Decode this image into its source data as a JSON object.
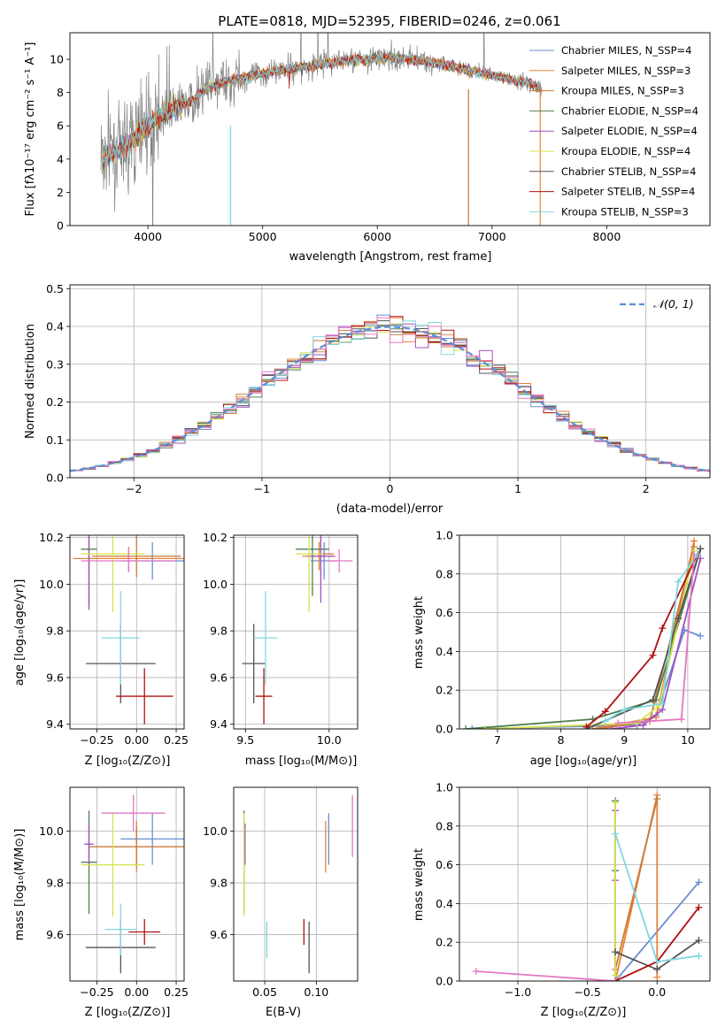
{
  "figure": {
    "title": "PLATE=0818, MJD=52395, FIBERID=0246, z=0.061"
  },
  "models": [
    {
      "name": "Chabrier MILES",
      "nssp": "4",
      "color": "#6b8fd4"
    },
    {
      "name": "Salpeter MILES",
      "nssp": "3",
      "color": "#e8833a"
    },
    {
      "name": "Kroupa MILES",
      "nssp": "3",
      "color": "#c97a3a"
    },
    {
      "name": "Chabrier ELODIE",
      "nssp": "4",
      "color": "#4f7f4f"
    },
    {
      "name": "Salpeter ELODIE",
      "nssp": "4",
      "color": "#a34fc2"
    },
    {
      "name": "Kroupa ELODIE",
      "nssp": "4",
      "color": "#d6e34a"
    },
    {
      "name": "Chabrier STELIB",
      "nssp": "4",
      "color": "#555555"
    },
    {
      "name": "Salpeter STELIB",
      "nssp": "4",
      "color": "#b01010"
    },
    {
      "name": "Kroupa STELIB",
      "nssp": "3",
      "color": "#7fd8e0"
    }
  ],
  "extra_colors": {
    "pink": "#e377c2",
    "data": "#808080",
    "gauss": "#5b8dd6"
  },
  "chart_data": [
    {
      "id": "spectrum",
      "type": "line",
      "xlabel": "wavelength [Angstrom, rest frame]",
      "ylabel": "Flux [fλ10⁻¹⁷ erg cm⁻² s⁻¹ A⁻¹]",
      "xlim": [
        3320,
        8900
      ],
      "ylim": [
        0,
        11.6
      ],
      "xticks": [
        4000,
        5000,
        6000,
        7000,
        8000
      ],
      "yticks": [
        0,
        2,
        4,
        6,
        8,
        10
      ],
      "model_continuum": {
        "x": [
          3600,
          3700,
          3800,
          3900,
          4000,
          4100,
          4200,
          4300,
          4400,
          4500,
          4700,
          4900,
          5100,
          5300,
          5500,
          5700,
          5900,
          6100,
          6300,
          6500,
          6700,
          6900,
          7100,
          7300,
          7420
        ],
        "y": [
          3.9,
          4.4,
          4.6,
          5.4,
          6.0,
          6.6,
          6.9,
          7.3,
          7.6,
          8.2,
          8.7,
          9.0,
          9.3,
          9.5,
          9.7,
          9.9,
          10.0,
          10.1,
          10.0,
          9.8,
          9.5,
          9.2,
          8.9,
          8.6,
          8.3
        ]
      },
      "series": [
        {
          "name": "Chabrier MILES",
          "label": "N_SSP=4"
        },
        {
          "name": "Salpeter MILES",
          "label": "N_SSP=3"
        },
        {
          "name": "Kroupa MILES",
          "label": "N_SSP=3"
        },
        {
          "name": "Chabrier ELODIE",
          "label": "N_SSP=4"
        },
        {
          "name": "Salpeter ELODIE",
          "label": "N_SSP=4"
        },
        {
          "name": "Kroupa ELODIE",
          "label": "N_SSP=4"
        },
        {
          "name": "Chabrier STELIB",
          "label": "N_SSP=4"
        },
        {
          "name": "Salpeter STELIB",
          "label": "N_SSP=4"
        },
        {
          "name": "Kroupa STELIB",
          "label": "N_SSP=3"
        }
      ],
      "legend": "right"
    },
    {
      "id": "residuals",
      "type": "histogram",
      "xlabel": "(data-model)/error",
      "ylabel": "Normed distribution",
      "xlim": [
        -2.5,
        2.5
      ],
      "ylim": [
        0,
        0.51
      ],
      "xticks": [
        -2,
        -1,
        0,
        1,
        2
      ],
      "yticks": [
        0.0,
        0.1,
        0.2,
        0.3,
        0.4,
        0.5
      ],
      "bin_width": 0.1,
      "reference_curve": "𝒩(0, 1)",
      "legend": "top-right",
      "grid": true
    },
    {
      "id": "age-vs-Z",
      "type": "errorbar",
      "xlabel": "Z [log₁₀(Z/Z⊙)]",
      "ylabel": "age  [log₁₀(age/yr)]",
      "xlim": [
        -0.42,
        0.3
      ],
      "ylim": [
        9.38,
        10.21
      ],
      "xticks": [
        -0.25,
        0.0,
        0.25
      ],
      "yticks": [
        9.4,
        9.6,
        9.8,
        10.0,
        10.2
      ],
      "points": [
        {
          "model": "Chabrier MILES",
          "x": 0.1,
          "xerr": 0.2,
          "y": 10.1,
          "yerr": 0.08
        },
        {
          "model": "Salpeter MILES",
          "x": -0.05,
          "xerr": 0.35,
          "y": 10.11,
          "yerr": 0.05
        },
        {
          "model": "Kroupa MILES",
          "x": 0.0,
          "xerr": 0.28,
          "y": 10.12,
          "yerr": 0.09
        },
        {
          "model": "Chabrier ELODIE",
          "x": -0.3,
          "xerr": 0.05,
          "y": 10.15,
          "yerr": 0.24
        },
        {
          "model": "Salpeter ELODIE",
          "x": -0.3,
          "xerr": 0.0,
          "y": 10.14,
          "yerr": 0.25
        },
        {
          "model": "Kroupa ELODIE",
          "x": -0.15,
          "xerr": 0.2,
          "y": 10.13,
          "yerr": 0.25
        },
        {
          "model": "Chabrier STELIB",
          "x": -0.1,
          "xerr": 0.22,
          "y": 9.66,
          "yerr": 0.17
        },
        {
          "model": "Salpeter STELIB",
          "x": 0.05,
          "xerr": 0.18,
          "y": 9.52,
          "yerr": 0.12
        },
        {
          "model": "Kroupa STELIB",
          "x": -0.1,
          "xerr": 0.12,
          "y": 9.77,
          "yerr": 0.2
        },
        {
          "model": "pink",
          "x": -0.05,
          "xerr": 0.3,
          "y": 10.1,
          "yerr": 0.05
        }
      ]
    },
    {
      "id": "age-vs-mass",
      "type": "errorbar",
      "xlabel": "mass [log₁₀(M/M⊙)]",
      "xlim": [
        9.43,
        10.17
      ],
      "ylim": [
        9.38,
        10.21
      ],
      "xticks": [
        9.5,
        10.0
      ],
      "yticks": [
        9.4,
        9.6,
        9.8,
        10.0,
        10.2
      ],
      "points": [
        {
          "model": "Chabrier MILES",
          "x": 9.97,
          "xerr": 0.08,
          "y": 10.1,
          "yerr": 0.08
        },
        {
          "model": "Salpeter MILES",
          "x": 9.94,
          "xerr": 0.1,
          "y": 10.12,
          "yerr": 0.06
        },
        {
          "model": "Kroupa MILES",
          "x": 9.95,
          "xerr": 0.08,
          "y": 10.13,
          "yerr": 0.09
        },
        {
          "model": "Chabrier ELODIE",
          "x": 9.9,
          "xerr": 0.1,
          "y": 10.15,
          "yerr": 0.2
        },
        {
          "model": "Salpeter ELODIE",
          "x": 9.95,
          "xerr": 0.08,
          "y": 10.12,
          "yerr": 0.2
        },
        {
          "model": "Kroupa ELODIE",
          "x": 9.88,
          "xerr": 0.08,
          "y": 10.13,
          "yerr": 0.25
        },
        {
          "model": "Chabrier STELIB",
          "x": 9.55,
          "xerr": 0.07,
          "y": 9.66,
          "yerr": 0.17
        },
        {
          "model": "Salpeter STELIB",
          "x": 9.61,
          "xerr": 0.05,
          "y": 9.52,
          "yerr": 0.12
        },
        {
          "model": "Kroupa STELIB",
          "x": 9.62,
          "xerr": 0.07,
          "y": 9.77,
          "yerr": 0.2
        },
        {
          "model": "pink",
          "x": 10.06,
          "xerr": 0.08,
          "y": 10.1,
          "yerr": 0.05
        }
      ]
    },
    {
      "id": "massweight-vs-age",
      "type": "line",
      "xlabel": "age  [log₁₀(age/yr)]",
      "ylabel": "mass weight",
      "xlim": [
        6.4,
        10.35
      ],
      "ylim": [
        0,
        1.0
      ],
      "xticks": [
        7,
        8,
        9,
        10
      ],
      "yticks": [
        0.0,
        0.2,
        0.4,
        0.6,
        0.8,
        1.0
      ],
      "series": [
        {
          "model": "Chabrier MILES",
          "x": [
            6.6,
            9.2,
            9.5,
            9.95,
            10.2
          ],
          "y": [
            0.0,
            0.02,
            0.07,
            0.51,
            0.48
          ]
        },
        {
          "model": "Salpeter MILES",
          "x": [
            8.5,
            9.5,
            10.1
          ],
          "y": [
            0.0,
            0.06,
            0.97
          ]
        },
        {
          "model": "Kroupa MILES",
          "x": [
            8.6,
            9.4,
            10.1
          ],
          "y": [
            0.0,
            0.04,
            0.94
          ]
        },
        {
          "model": "Chabrier ELODIE",
          "x": [
            6.5,
            8.5,
            9.5,
            10.2
          ],
          "y": [
            0.0,
            0.05,
            0.15,
            0.93
          ]
        },
        {
          "model": "Salpeter ELODIE",
          "x": [
            8.8,
            9.3,
            9.6,
            10.2
          ],
          "y": [
            0.0,
            0.02,
            0.1,
            0.88
          ]
        },
        {
          "model": "Kroupa ELODIE",
          "x": [
            6.8,
            9.2,
            9.55,
            10.1
          ],
          "y": [
            0.0,
            0.03,
            0.12,
            0.92
          ]
        },
        {
          "model": "Chabrier STELIB",
          "x": [
            8.4,
            9.45,
            9.85,
            10.2
          ],
          "y": [
            0.0,
            0.15,
            0.57,
            0.93
          ]
        },
        {
          "model": "Salpeter STELIB",
          "x": [
            8.4,
            8.7,
            9.45,
            9.6,
            10.15
          ],
          "y": [
            0.01,
            0.09,
            0.38,
            0.52,
            0.9
          ]
        },
        {
          "model": "Kroupa STELIB",
          "x": [
            8.7,
            9.0,
            9.6,
            9.85,
            10.15
          ],
          "y": [
            0.04,
            0.1,
            0.13,
            0.76,
            0.9
          ]
        },
        {
          "model": "pink",
          "x": [
            8.9,
            9.9,
            10.1
          ],
          "y": [
            0.03,
            0.05,
            0.9
          ]
        }
      ]
    },
    {
      "id": "mass-vs-Z",
      "type": "errorbar",
      "xlabel": "Z [log₁₀(Z/Z⊙)]",
      "ylabel": "mass [log₁₀(M/M⊙)]",
      "xlim": [
        -0.42,
        0.3
      ],
      "ylim": [
        9.42,
        10.17
      ],
      "xticks": [
        -0.25,
        0.0,
        0.25
      ],
      "yticks": [
        9.6,
        9.8,
        10.0
      ],
      "points": [
        {
          "model": "Chabrier MILES",
          "x": 0.1,
          "xerr": 0.2,
          "y": 9.97,
          "yerr": 0.1
        },
        {
          "model": "Salpeter MILES",
          "x": 0.0,
          "xerr": 0.28,
          "y": 9.94,
          "yerr": 0.1
        },
        {
          "model": "Kroupa MILES",
          "x": 0.0,
          "xerr": 0.3,
          "y": 9.94,
          "yerr": 0.08
        },
        {
          "model": "Chabrier ELODIE",
          "x": -0.3,
          "xerr": 0.05,
          "y": 9.88,
          "yerr": 0.2
        },
        {
          "model": "Salpeter ELODIE",
          "x": -0.3,
          "xerr": 0.03,
          "y": 9.95,
          "yerr": 0.08
        },
        {
          "model": "Kroupa ELODIE",
          "x": -0.15,
          "xerr": 0.2,
          "y": 9.87,
          "yerr": 0.2
        },
        {
          "model": "Chabrier STELIB",
          "x": -0.1,
          "xerr": 0.22,
          "y": 9.55,
          "yerr": 0.1
        },
        {
          "model": "Salpeter STELIB",
          "x": 0.05,
          "xerr": 0.1,
          "y": 9.61,
          "yerr": 0.05
        },
        {
          "model": "Kroupa STELIB",
          "x": -0.1,
          "xerr": 0.1,
          "y": 9.62,
          "yerr": 0.1
        },
        {
          "model": "pink",
          "x": -0.02,
          "xerr": 0.2,
          "y": 10.07,
          "yerr": 0.07
        }
      ]
    },
    {
      "id": "mass-vs-ebv",
      "type": "errorbar",
      "xlabel": "E(B-V)",
      "xlim": [
        0.02,
        0.14
      ],
      "ylim": [
        9.42,
        10.17
      ],
      "xticks": [
        0.05,
        0.1
      ],
      "yticks": [
        9.6,
        9.8,
        10.0
      ],
      "points": [
        {
          "model": "Chabrier MILES",
          "x": 0.112,
          "y": 9.97,
          "yerr": 0.1
        },
        {
          "model": "Salpeter MILES",
          "x": 0.109,
          "y": 9.94,
          "yerr": 0.1
        },
        {
          "model": "Chabrier ELODIE",
          "x": 0.03,
          "y": 9.88,
          "yerr": 0.2
        },
        {
          "model": "Salpeter ELODIE",
          "x": 0.031,
          "y": 9.95,
          "yerr": 0.08
        },
        {
          "model": "Kroupa ELODIE",
          "x": 0.03,
          "y": 9.87,
          "yerr": 0.2
        },
        {
          "model": "Chabrier STELIB",
          "x": 0.093,
          "y": 9.55,
          "yerr": 0.1
        },
        {
          "model": "Salpeter STELIB",
          "x": 0.088,
          "y": 9.61,
          "yerr": 0.05
        },
        {
          "model": "Kroupa STELIB",
          "x": 0.052,
          "y": 9.58,
          "yerr": 0.07
        },
        {
          "model": "pink",
          "x": 0.135,
          "y": 10.02,
          "yerr": 0.12
        }
      ]
    },
    {
      "id": "massweight-vs-Z",
      "type": "line",
      "xlabel": "Z [log₁₀(Z/Z⊙)]",
      "ylabel": "mass weight",
      "xlim": [
        -1.42,
        0.38
      ],
      "ylim": [
        0,
        1.0
      ],
      "xticks": [
        -1.0,
        -0.5,
        0.0
      ],
      "yticks": [
        0.0,
        0.2,
        0.4,
        0.6,
        0.8,
        1.0
      ],
      "series": [
        {
          "model": "Chabrier MILES",
          "x": [
            -0.3,
            0.3
          ],
          "y": [
            0.0,
            0.51
          ]
        },
        {
          "model": "Salpeter MILES",
          "x": [
            -0.3,
            0.0,
            0.0
          ],
          "y": [
            0.0,
            0.96,
            0.02
          ]
        },
        {
          "model": "Kroupa MILES",
          "x": [
            -0.3,
            0.0
          ],
          "y": [
            0.06,
            0.94
          ]
        },
        {
          "model": "Chabrier ELODIE",
          "x": [
            -0.3,
            -0.3,
            -0.3
          ],
          "y": [
            0.0,
            0.57,
            0.93
          ]
        },
        {
          "model": "Salpeter ELODIE",
          "x": [
            -0.3,
            -0.3,
            -0.3
          ],
          "y": [
            0.0,
            0.52,
            0.88
          ]
        },
        {
          "model": "Kroupa ELODIE",
          "x": [
            -0.3,
            -0.3,
            -0.3
          ],
          "y": [
            0.0,
            0.03,
            0.92
          ]
        },
        {
          "model": "Chabrier STELIB",
          "x": [
            -0.3,
            0.0,
            0.3
          ],
          "y": [
            0.15,
            0.06,
            0.21
          ]
        },
        {
          "model": "Salpeter STELIB",
          "x": [
            -0.3,
            0.0,
            0.3
          ],
          "y": [
            0.0,
            0.1,
            0.38
          ]
        },
        {
          "model": "Kroupa STELIB",
          "x": [
            -0.3,
            0.0,
            0.3
          ],
          "y": [
            0.76,
            0.1,
            0.13
          ]
        },
        {
          "model": "pink",
          "x": [
            -1.3,
            -0.3
          ],
          "y": [
            0.05,
            0.0
          ]
        }
      ]
    }
  ]
}
